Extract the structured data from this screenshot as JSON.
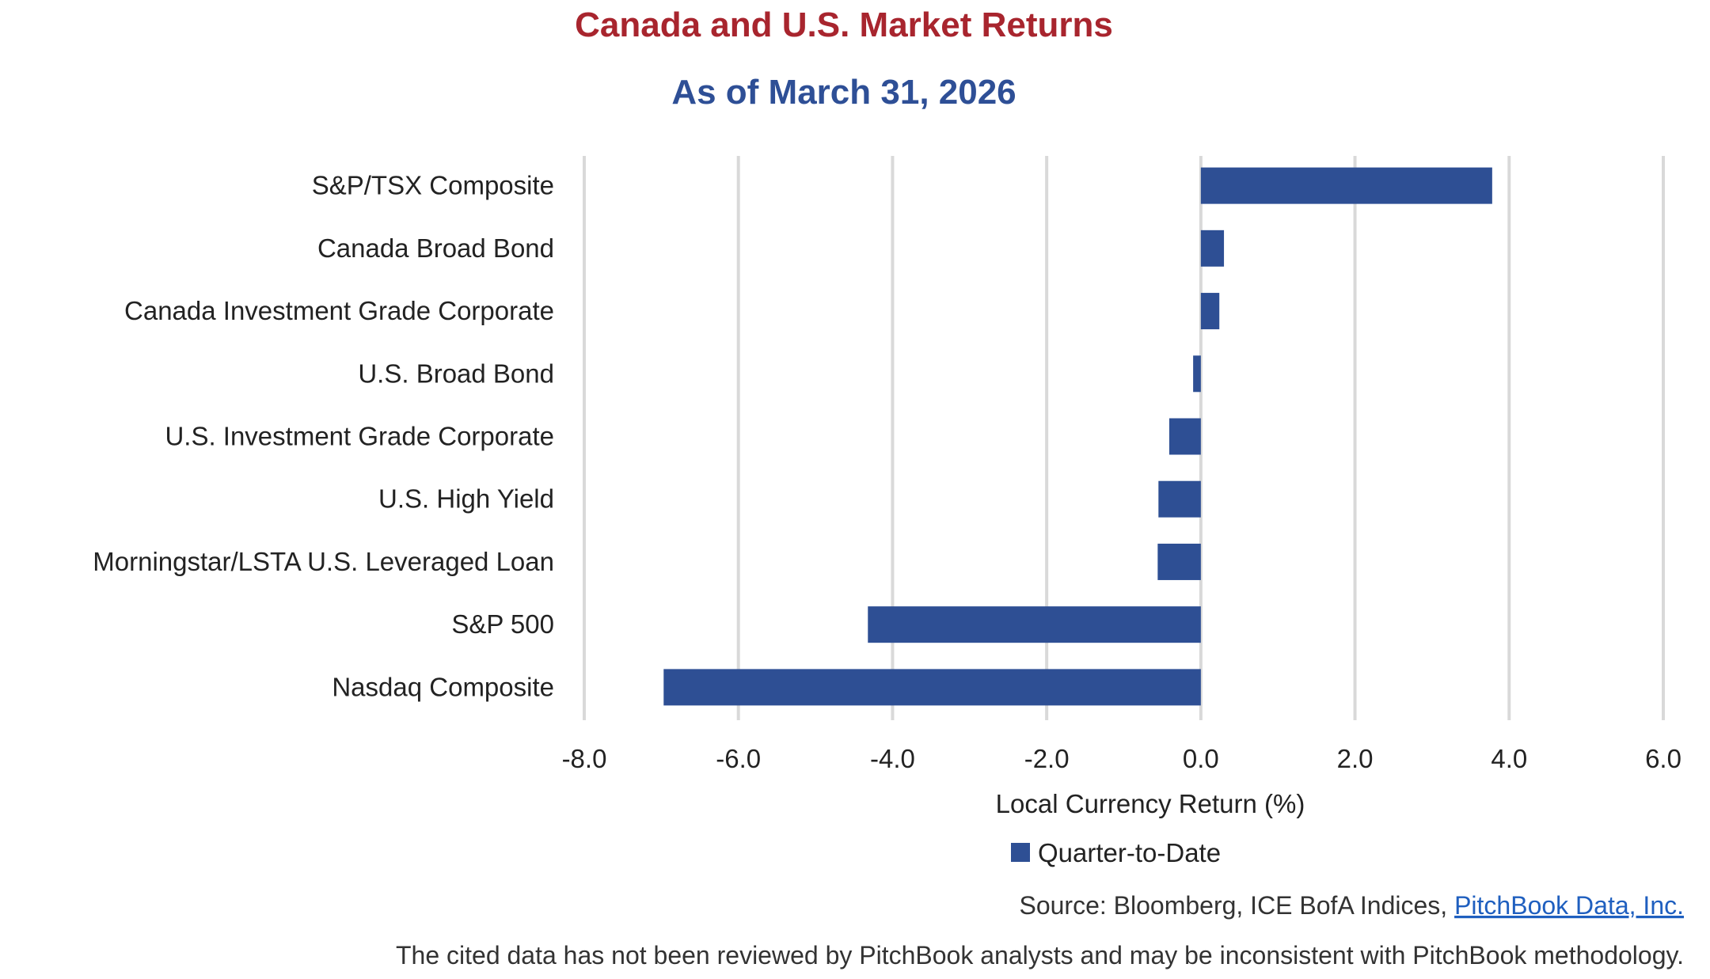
{
  "chart_data": {
    "type": "bar",
    "orientation": "horizontal",
    "title": "Canada and U.S. Market Returns",
    "subtitle": "As of March 31, 2026",
    "categories": [
      "S&P/TSX Composite",
      "Canada Broad Bond",
      "Canada Investment Grade Corporate",
      "U.S. Broad Bond",
      "U.S. Investment Grade Corporate",
      "U.S. High Yield",
      "Morningstar/LSTA U.S. Leveraged Loan",
      "S&P 500",
      "Nasdaq Composite"
    ],
    "series": [
      {
        "name": "Quarter-to-Date",
        "values": [
          3.78,
          0.3,
          0.24,
          -0.1,
          -0.41,
          -0.55,
          -0.56,
          -4.32,
          -6.97
        ],
        "color": "#2E4F94"
      }
    ],
    "xlabel": "Local Currency Return (%)",
    "xlim": [
      -8,
      6
    ],
    "xticks": [
      "-8.0",
      "-6.0",
      "-4.0",
      "-2.0",
      "0.0",
      "2.0",
      "4.0",
      "6.0"
    ],
    "grid": true,
    "legend_position": "bottom",
    "colors": {
      "title": "#A8252E",
      "subtitle": "#2E4F96",
      "grid": "#D9D9D9"
    }
  },
  "footer": {
    "source_prefix": "Source: Bloomberg, ICE BofA Indices, ",
    "source_link": "PitchBook Data, Inc.",
    "disclaimer": "The cited data has not been reviewed by PitchBook analysts and may be inconsistent with PitchBook methodology."
  }
}
